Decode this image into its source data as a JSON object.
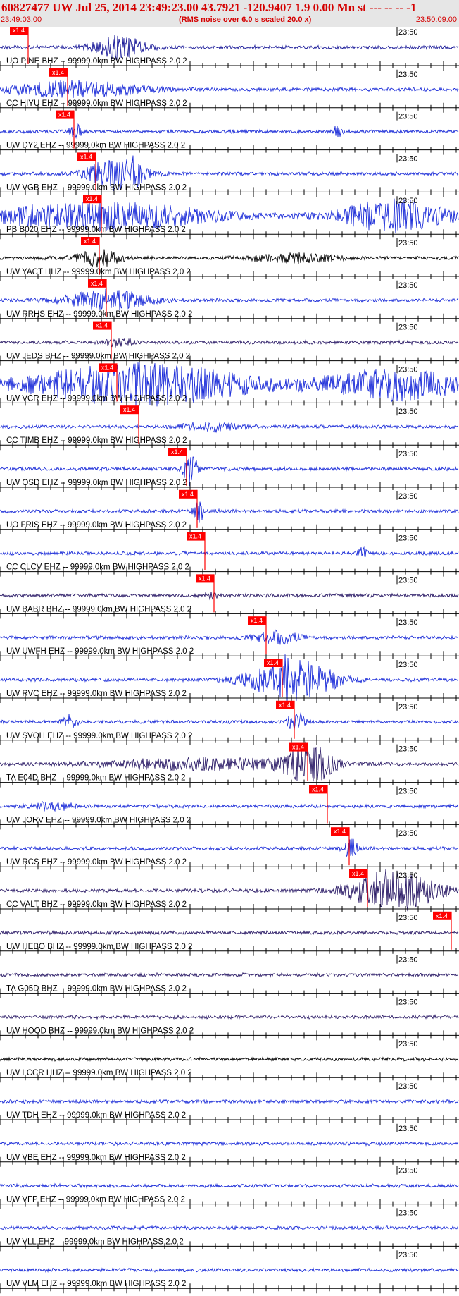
{
  "header": {
    "title": "60827477 UW Jul 25, 2014 23:49:23.00   43.7921 -120.9407  1.9 0.00 Mn st --- -- --  -1",
    "start_time": "23:49:03.00",
    "note": "(RMS noise over 6.0 s scaled 20.0 x)",
    "end_time": "23:50:09.00"
  },
  "colors": {
    "header_bg": "#e6e6e6",
    "header_text": "#d40000",
    "pick_box": "#ff0000",
    "pick_line": "#ff0000"
  },
  "pick_label": "x1.4",
  "tick_label": "23:50",
  "channels": [
    {
      "label": "UO PINE BHZ -- 99999.0km BW  HIGHPASS  2.0  2",
      "color": "#1a1a99"
    },
    {
      "label": "CC HIYU EHZ -- 99999.0km BW  HIGHPASS  2.0  2",
      "color": "#1a2bd8"
    },
    {
      "label": "UW DY2 EHZ -- 99999.0km BW  HIGHPASS  2.0  2",
      "color": "#1a2bd8"
    },
    {
      "label": "UW VGB EHZ -- 99999.0km BW  HIGHPASS  2.0  2",
      "color": "#1a2bd8"
    },
    {
      "label": "PB B020 EHZ -- 99999.0km BW  HIGHPASS  2.0  2",
      "color": "#1a2bd8"
    },
    {
      "label": "UW YACT HHZ -- 99999.0km BW  HIGHPASS  2.0  2",
      "color": "#000000"
    },
    {
      "label": "UW RRHS EHZ -- 99999.0km BW  HIGHPASS  2.0  2",
      "color": "#1a2bd8"
    },
    {
      "label": "UW JEDS BHZ -- 99999.0km BW  HIGHPASS  2.0  2",
      "color": "#2a1a66"
    },
    {
      "label": "UW VCR EHZ -- 99999.0km BW  HIGHPASS  2.0  2",
      "color": "#1a2bd8"
    },
    {
      "label": "CC TIMB EHZ -- 99999.0km BW  HIGHPASS  2.0  2",
      "color": "#1a2bd8"
    },
    {
      "label": "UW OSD EHZ -- 99999.0km BW  HIGHPASS  2.0  2",
      "color": "#1a2bd8"
    },
    {
      "label": "UO FRIS EHZ -- 99999.0km BW  HIGHPASS  2.0  2",
      "color": "#1a2bd8"
    },
    {
      "label": "CC CLCV EHZ -- 99999.0km BW  HIGHPASS  2.0  2",
      "color": "#1a2bd8"
    },
    {
      "label": "UW BABR BHZ -- 99999.0km BW  HIGHPASS  2.0  2",
      "color": "#2a1a66"
    },
    {
      "label": "UW UWFH EHZ -- 99999.0km BW  HIGHPASS  2.0  2",
      "color": "#1a2bd8"
    },
    {
      "label": "UW RVC EHZ -- 99999.0km BW  HIGHPASS  2.0  2",
      "color": "#1a2bd8"
    },
    {
      "label": "UW SVOH EHZ -- 99999.0km BW  HIGHPASS  2.0  2",
      "color": "#1a2bd8"
    },
    {
      "label": "TA E04D BHZ -- 99999.0km BW  HIGHPASS  2.0  2",
      "color": "#2a1a66"
    },
    {
      "label": "UW JORV EHZ -- 99999.0km BW  HIGHPASS  2.0  2",
      "color": "#1a2bd8"
    },
    {
      "label": "UW RCS EHZ -- 99999.0km BW  HIGHPASS  2.0  2",
      "color": "#1a2bd8"
    },
    {
      "label": "CC VALT BHZ -- 99999.0km BW  HIGHPASS  2.0  2",
      "color": "#2a1a66"
    },
    {
      "label": "UW HEBO BHZ -- 99999.0km BW  HIGHPASS  2.0  2",
      "color": "#2a1a66"
    },
    {
      "label": "TA G05D BHZ -- 99999.0km BW  HIGHPASS  2.0  2",
      "color": "#2a1a66"
    },
    {
      "label": "UW HOOD BHZ -- 99999.0km BW  HIGHPASS  2.0  2",
      "color": "#2a1a66"
    },
    {
      "label": "UW LCCR HHZ -- 99999.0km BW  HIGHPASS  2.0  2",
      "color": "#000000"
    },
    {
      "label": "UW TDH EHZ -- 99999.0km BW  HIGHPASS  2.0  2",
      "color": "#1a2bd8"
    },
    {
      "label": "UW VBE EHZ -- 99999.0km BW  HIGHPASS  2.0  2",
      "color": "#1a2bd8"
    },
    {
      "label": "UW VFP EHZ -- 99999.0km BW  HIGHPASS  2.0  2",
      "color": "#1a2bd8"
    },
    {
      "label": "UW VLL EHZ -- 99999.0km BW  HIGHPASS  2.0  2",
      "color": "#1a2bd8"
    },
    {
      "label": "UW VLM EHZ -- 99999.0km BW  HIGHPASS  2.0  2",
      "color": "#1a2bd8"
    }
  ]
}
